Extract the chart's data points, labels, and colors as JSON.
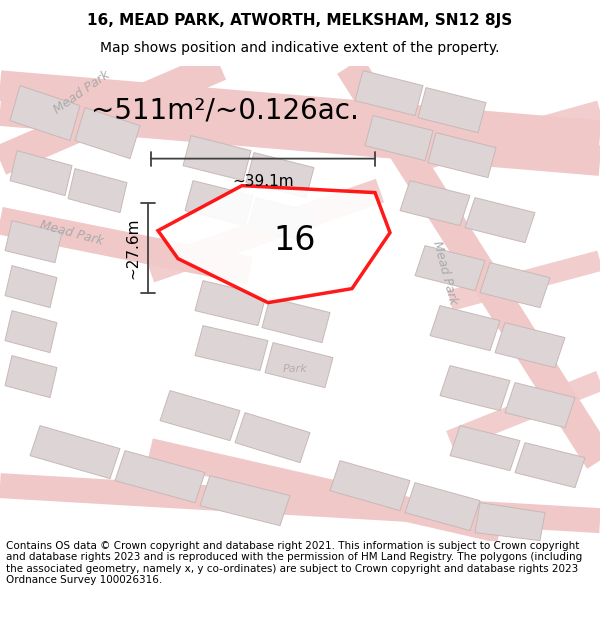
{
  "title": "16, MEAD PARK, ATWORTH, MELKSHAM, SN12 8JS",
  "subtitle": "Map shows position and indicative extent of the property.",
  "area_text": "~511m²/~0.126ac.",
  "width_text": "~39.1m",
  "height_text": "~27.6m",
  "label_16": "16",
  "footer": "Contains OS data © Crown copyright and database right 2021. This information is subject to Crown copyright and database rights 2023 and is reproduced with the permission of HM Land Registry. The polygons (including the associated geometry, namely x, y co-ordinates) are subject to Crown copyright and database rights 2023 Ordnance Survey 100026316.",
  "bg_color": "#ffffff",
  "map_bg": "#f7f2f2",
  "road_color": "#f0c8c8",
  "building_color": "#ddd5d5",
  "property_fill": "#ffffff",
  "property_edge": "#ff0000",
  "dim_line_color": "#404040",
  "title_fontsize": 11,
  "subtitle_fontsize": 10,
  "area_fontsize": 20,
  "label_fontsize": 24,
  "dim_fontsize": 11,
  "footer_fontsize": 7.5,
  "road_label_fontsize": 9,
  "road_label_color": "#aaaaaa",
  "park_label_color": "#bbaaaa"
}
